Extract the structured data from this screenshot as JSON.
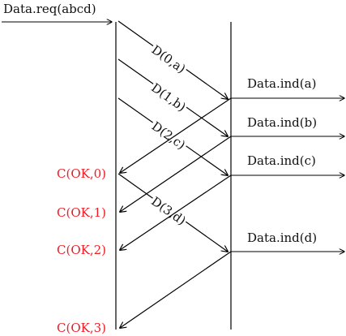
{
  "diagram": {
    "request_label": "Data.req(abcd)",
    "indications": [
      {
        "label": "Data.ind(a)"
      },
      {
        "label": "Data.ind(b)"
      },
      {
        "label": "Data.ind(c)"
      },
      {
        "label": "Data.ind(d)"
      }
    ],
    "data_messages": [
      {
        "label": "D(0,a)"
      },
      {
        "label": "D(1,b)"
      },
      {
        "label": "D(2,c)"
      },
      {
        "label": "D(3,d)"
      }
    ],
    "acks": [
      {
        "label": "C(OK,0)"
      },
      {
        "label": "C(OK,1)"
      },
      {
        "label": "C(OK,2)"
      },
      {
        "label": "C(OK,3)"
      }
    ],
    "colors": {
      "ack_color": "#ee1c24",
      "line_color": "#000000"
    }
  }
}
